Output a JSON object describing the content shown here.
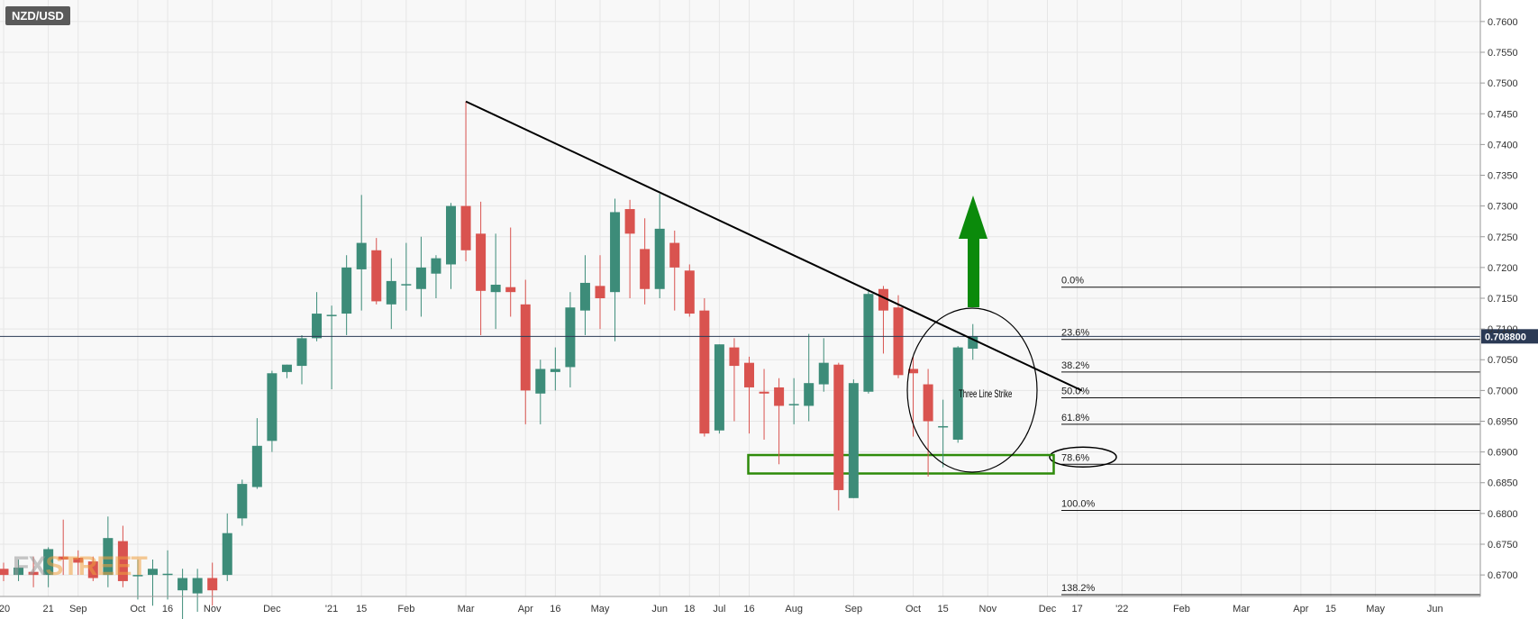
{
  "symbol": "NZD/USD",
  "watermark": {
    "prefix": "FX",
    "suffix": "STREET"
  },
  "colors": {
    "bull": "#3d8c79",
    "bear": "#d9534f",
    "trendline": "#000000",
    "arrow": "#0b8a0b",
    "zone": "#2e8b0a",
    "price_tag": "#2b3a55",
    "grid": "#e6e6e6",
    "plot_bg": "#f8f8f8"
  },
  "chart_data": {
    "type": "candlestick",
    "title": "NZD/USD",
    "timeframe_word": "weekly",
    "ylim": [
      0.6665,
      0.7635
    ],
    "y_ticks": [
      "0.6700",
      "0.6750",
      "0.6800",
      "0.6850",
      "0.6900",
      "0.6950",
      "0.7000",
      "0.7050",
      "0.7100",
      "0.7150",
      "0.7200",
      "0.7250",
      "0.7300",
      "0.7350",
      "0.7400",
      "0.7450",
      "0.7500",
      "0.7550",
      "0.7600"
    ],
    "y_tick_values": [
      0.67,
      0.675,
      0.68,
      0.685,
      0.69,
      0.695,
      0.7,
      0.705,
      0.71,
      0.715,
      0.72,
      0.725,
      0.73,
      0.735,
      0.74,
      0.745,
      0.75,
      0.755,
      0.76
    ],
    "x_ticks": [
      "'20",
      "21",
      "Sep",
      "Oct",
      "16",
      "Nov",
      "Dec",
      "'21",
      "15",
      "Feb",
      "Mar",
      "Apr",
      "16",
      "May",
      "Jun",
      "18",
      "Jul",
      "16",
      "Aug",
      "Sep",
      "Oct",
      "15",
      "Nov",
      "Dec",
      "17",
      "'22",
      "Feb",
      "Mar",
      "Apr",
      "15",
      "May",
      "Jun"
    ],
    "x_tick_index": [
      0,
      3,
      5,
      9,
      11,
      14,
      18,
      22,
      24,
      27,
      31,
      35,
      37,
      40,
      44,
      46,
      48,
      50,
      53,
      57,
      61,
      63,
      66,
      70,
      72,
      75,
      79,
      83,
      87,
      89,
      92,
      96
    ],
    "candles": [
      {
        "o": 0.671,
        "h": 0.672,
        "l": 0.669,
        "c": 0.67
      },
      {
        "o": 0.67,
        "h": 0.6725,
        "l": 0.669,
        "c": 0.6712
      },
      {
        "o": 0.6705,
        "h": 0.673,
        "l": 0.668,
        "c": 0.67
      },
      {
        "o": 0.67,
        "h": 0.6745,
        "l": 0.668,
        "c": 0.6742
      },
      {
        "o": 0.673,
        "h": 0.679,
        "l": 0.67,
        "c": 0.6725
      },
      {
        "o": 0.6728,
        "h": 0.674,
        "l": 0.67,
        "c": 0.672
      },
      {
        "o": 0.6722,
        "h": 0.673,
        "l": 0.669,
        "c": 0.6695
      },
      {
        "o": 0.67,
        "h": 0.6795,
        "l": 0.668,
        "c": 0.676
      },
      {
        "o": 0.6755,
        "h": 0.678,
        "l": 0.668,
        "c": 0.669
      },
      {
        "o": 0.67,
        "h": 0.6725,
        "l": 0.666,
        "c": 0.67
      },
      {
        "o": 0.67,
        "h": 0.6725,
        "l": 0.665,
        "c": 0.671
      },
      {
        "o": 0.67,
        "h": 0.674,
        "l": 0.666,
        "c": 0.6702
      },
      {
        "o": 0.6675,
        "h": 0.671,
        "l": 0.662,
        "c": 0.6695
      },
      {
        "o": 0.667,
        "h": 0.671,
        "l": 0.664,
        "c": 0.6695
      },
      {
        "o": 0.6695,
        "h": 0.672,
        "l": 0.665,
        "c": 0.6675
      },
      {
        "o": 0.67,
        "h": 0.68,
        "l": 0.669,
        "c": 0.6768
      },
      {
        "o": 0.6792,
        "h": 0.6855,
        "l": 0.678,
        "c": 0.6848
      },
      {
        "o": 0.6843,
        "h": 0.6955,
        "l": 0.684,
        "c": 0.691
      },
      {
        "o": 0.6918,
        "h": 0.7032,
        "l": 0.69,
        "c": 0.7028
      },
      {
        "o": 0.703,
        "h": 0.7042,
        "l": 0.702,
        "c": 0.7042
      },
      {
        "o": 0.704,
        "h": 0.709,
        "l": 0.701,
        "c": 0.7085
      },
      {
        "o": 0.7085,
        "h": 0.716,
        "l": 0.708,
        "c": 0.7125
      },
      {
        "o": 0.7123,
        "h": 0.7138,
        "l": 0.7002,
        "c": 0.7123
      },
      {
        "o": 0.7125,
        "h": 0.722,
        "l": 0.709,
        "c": 0.72
      },
      {
        "o": 0.7197,
        "h": 0.7318,
        "l": 0.713,
        "c": 0.724
      },
      {
        "o": 0.7228,
        "h": 0.7248,
        "l": 0.714,
        "c": 0.7145
      },
      {
        "o": 0.714,
        "h": 0.7215,
        "l": 0.71,
        "c": 0.7178
      },
      {
        "o": 0.7173,
        "h": 0.724,
        "l": 0.713,
        "c": 0.7173
      },
      {
        "o": 0.7165,
        "h": 0.725,
        "l": 0.712,
        "c": 0.72
      },
      {
        "o": 0.719,
        "h": 0.722,
        "l": 0.715,
        "c": 0.7215
      },
      {
        "o": 0.7205,
        "h": 0.7305,
        "l": 0.7165,
        "c": 0.73
      },
      {
        "o": 0.73,
        "h": 0.747,
        "l": 0.721,
        "c": 0.7228
      },
      {
        "o": 0.7255,
        "h": 0.7307,
        "l": 0.709,
        "c": 0.7162
      },
      {
        "o": 0.716,
        "h": 0.7255,
        "l": 0.71,
        "c": 0.7172
      },
      {
        "o": 0.7168,
        "h": 0.7265,
        "l": 0.712,
        "c": 0.716
      },
      {
        "o": 0.714,
        "h": 0.718,
        "l": 0.6945,
        "c": 0.7
      },
      {
        "o": 0.6995,
        "h": 0.705,
        "l": 0.6945,
        "c": 0.7035
      },
      {
        "o": 0.703,
        "h": 0.707,
        "l": 0.7,
        "c": 0.7035
      },
      {
        "o": 0.7038,
        "h": 0.716,
        "l": 0.7005,
        "c": 0.7135
      },
      {
        "o": 0.713,
        "h": 0.722,
        "l": 0.709,
        "c": 0.7175
      },
      {
        "o": 0.717,
        "h": 0.722,
        "l": 0.71,
        "c": 0.715
      },
      {
        "o": 0.716,
        "h": 0.7312,
        "l": 0.708,
        "c": 0.729
      },
      {
        "o": 0.7295,
        "h": 0.731,
        "l": 0.715,
        "c": 0.7255
      },
      {
        "o": 0.723,
        "h": 0.728,
        "l": 0.714,
        "c": 0.7165
      },
      {
        "o": 0.7165,
        "h": 0.732,
        "l": 0.715,
        "c": 0.7263
      },
      {
        "o": 0.724,
        "h": 0.726,
        "l": 0.713,
        "c": 0.72
      },
      {
        "o": 0.7195,
        "h": 0.7205,
        "l": 0.712,
        "c": 0.7125
      },
      {
        "o": 0.713,
        "h": 0.715,
        "l": 0.6925,
        "c": 0.693
      },
      {
        "o": 0.6935,
        "h": 0.7075,
        "l": 0.693,
        "c": 0.7075
      },
      {
        "o": 0.707,
        "h": 0.7085,
        "l": 0.695,
        "c": 0.704
      },
      {
        "o": 0.7045,
        "h": 0.7055,
        "l": 0.693,
        "c": 0.7005
      },
      {
        "o": 0.6998,
        "h": 0.7035,
        "l": 0.692,
        "c": 0.6995
      },
      {
        "o": 0.7005,
        "h": 0.702,
        "l": 0.688,
        "c": 0.6975
      },
      {
        "o": 0.6978,
        "h": 0.702,
        "l": 0.6945,
        "c": 0.6978
      },
      {
        "o": 0.6975,
        "h": 0.7092,
        "l": 0.695,
        "c": 0.7012
      },
      {
        "o": 0.701,
        "h": 0.7085,
        "l": 0.6998,
        "c": 0.7045
      },
      {
        "o": 0.7042,
        "h": 0.7045,
        "l": 0.6805,
        "c": 0.6838
      },
      {
        "o": 0.6825,
        "h": 0.7018,
        "l": 0.6825,
        "c": 0.7012
      },
      {
        "o": 0.6998,
        "h": 0.7165,
        "l": 0.6995,
        "c": 0.7157
      },
      {
        "o": 0.7165,
        "h": 0.717,
        "l": 0.706,
        "c": 0.713
      },
      {
        "o": 0.7135,
        "h": 0.7155,
        "l": 0.702,
        "c": 0.7025
      },
      {
        "o": 0.7035,
        "h": 0.7055,
        "l": 0.6925,
        "c": 0.7028
      },
      {
        "o": 0.701,
        "h": 0.7035,
        "l": 0.686,
        "c": 0.695
      },
      {
        "o": 0.6942,
        "h": 0.6985,
        "l": 0.6875,
        "c": 0.6942
      },
      {
        "o": 0.692,
        "h": 0.7072,
        "l": 0.6915,
        "c": 0.707
      },
      {
        "o": 0.7068,
        "h": 0.7108,
        "l": 0.705,
        "c": 0.7088
      }
    ],
    "annotations": {
      "trendline": {
        "from": {
          "i": 31,
          "y": 0.747
        },
        "to": {
          "i": 72,
          "y": 0.7
        }
      },
      "circle_label": "Three Line Strike",
      "support_zone": {
        "i0": 50,
        "i1": 70,
        "y0": 0.6865,
        "y1": 0.6895
      },
      "arrow_direction": "up"
    },
    "fibonacci": [
      {
        "label": "0.0%",
        "y": 0.7168
      },
      {
        "label": "23.6%",
        "y": 0.7083
      },
      {
        "label": "38.2%",
        "y": 0.703
      },
      {
        "label": "50.0%",
        "y": 0.6988
      },
      {
        "label": "61.8%",
        "y": 0.6945
      },
      {
        "label": "78.6%",
        "y": 0.688
      },
      {
        "label": "100.0%",
        "y": 0.6805
      },
      {
        "label": "138.2%",
        "y": 0.6668
      }
    ],
    "highlighted_fib": "78.6%",
    "current_price": {
      "label": "0.708800",
      "value": 0.7088
    },
    "grid": true
  }
}
